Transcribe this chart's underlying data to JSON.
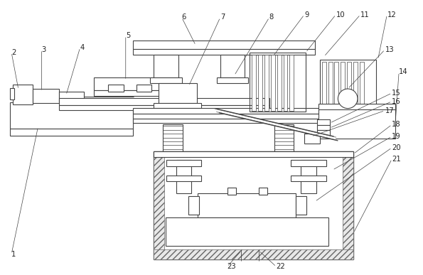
{
  "fig_width": 5.95,
  "fig_height": 3.87,
  "dpi": 100,
  "bg_color": "#ffffff",
  "line_color": "#444444",
  "label_color": "#222222",
  "label_fontsize": 7.2
}
